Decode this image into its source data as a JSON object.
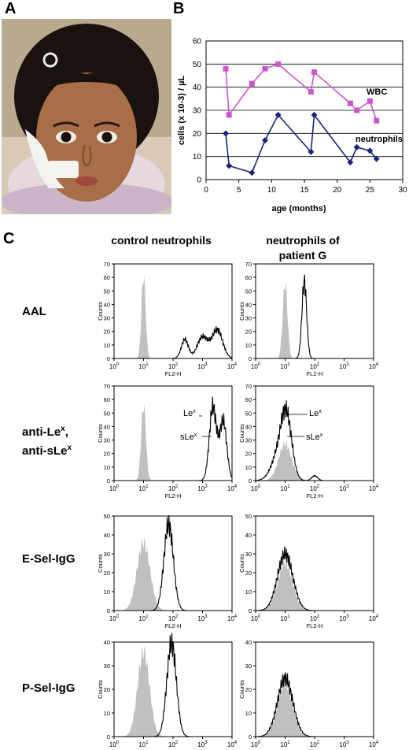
{
  "panels": {
    "a": "A",
    "b": "B",
    "c": "C"
  },
  "chart_data": {
    "type": "line",
    "xlabel": "age (months)",
    "ylabel": "cells (x 10-3) / µL",
    "xlim": [
      0,
      30
    ],
    "ylim": [
      0,
      60
    ],
    "xticks": [
      0,
      5,
      10,
      15,
      20,
      25,
      30
    ],
    "yticks": [
      0,
      10,
      20,
      30,
      40,
      50,
      60
    ],
    "grid": "horizontal",
    "series": [
      {
        "name": "WBC",
        "color": "#cc55cc",
        "marker": "square",
        "x": [
          3,
          3.5,
          7,
          9,
          11,
          16,
          16.5,
          22,
          23,
          25,
          26
        ],
        "y": [
          48,
          28,
          41.5,
          48,
          50,
          38,
          46.5,
          33,
          30,
          34,
          25.5
        ]
      },
      {
        "name": "neutrophils",
        "color": "#1a237e",
        "marker": "diamond",
        "x": [
          3,
          3.5,
          7,
          9,
          11,
          16,
          16.5,
          22,
          23,
          25,
          26
        ],
        "y": [
          20,
          6,
          3,
          17,
          28,
          12,
          28,
          7.5,
          14,
          12.5,
          9
        ]
      }
    ]
  },
  "flow": {
    "col_headers": [
      "control neutrophils",
      "neutrophils of\npatient G"
    ],
    "row_labels": [
      "AAL",
      "anti-Lex,\nanti-sLex",
      "E-Sel-IgG",
      "P-Sel-IgG"
    ],
    "x_axis_label": "FL2-H",
    "y_axis_label": "Counts",
    "x_ticks": [
      "10",
      "10",
      "10",
      "10",
      "10"
    ],
    "x_tick_exps": [
      "0",
      "1",
      "2",
      "3",
      "4"
    ],
    "y_ticks_70": [
      "0",
      "10",
      "20",
      "30",
      "40",
      "50",
      "60",
      "70"
    ],
    "y_ticks_50": [
      "0",
      "10",
      "20",
      "30",
      "40",
      "50"
    ],
    "y_ticks_40": [
      "0",
      "10",
      "20",
      "30",
      "40"
    ],
    "lex_label": "Le",
    "slex_label": "sLe",
    "sup_x": "x"
  },
  "colors": {
    "wbc": "#cc55cc",
    "neutrophils": "#1a237e",
    "histogram_fill": "#c0c0c0",
    "photo_bg": "#b9a98f"
  }
}
